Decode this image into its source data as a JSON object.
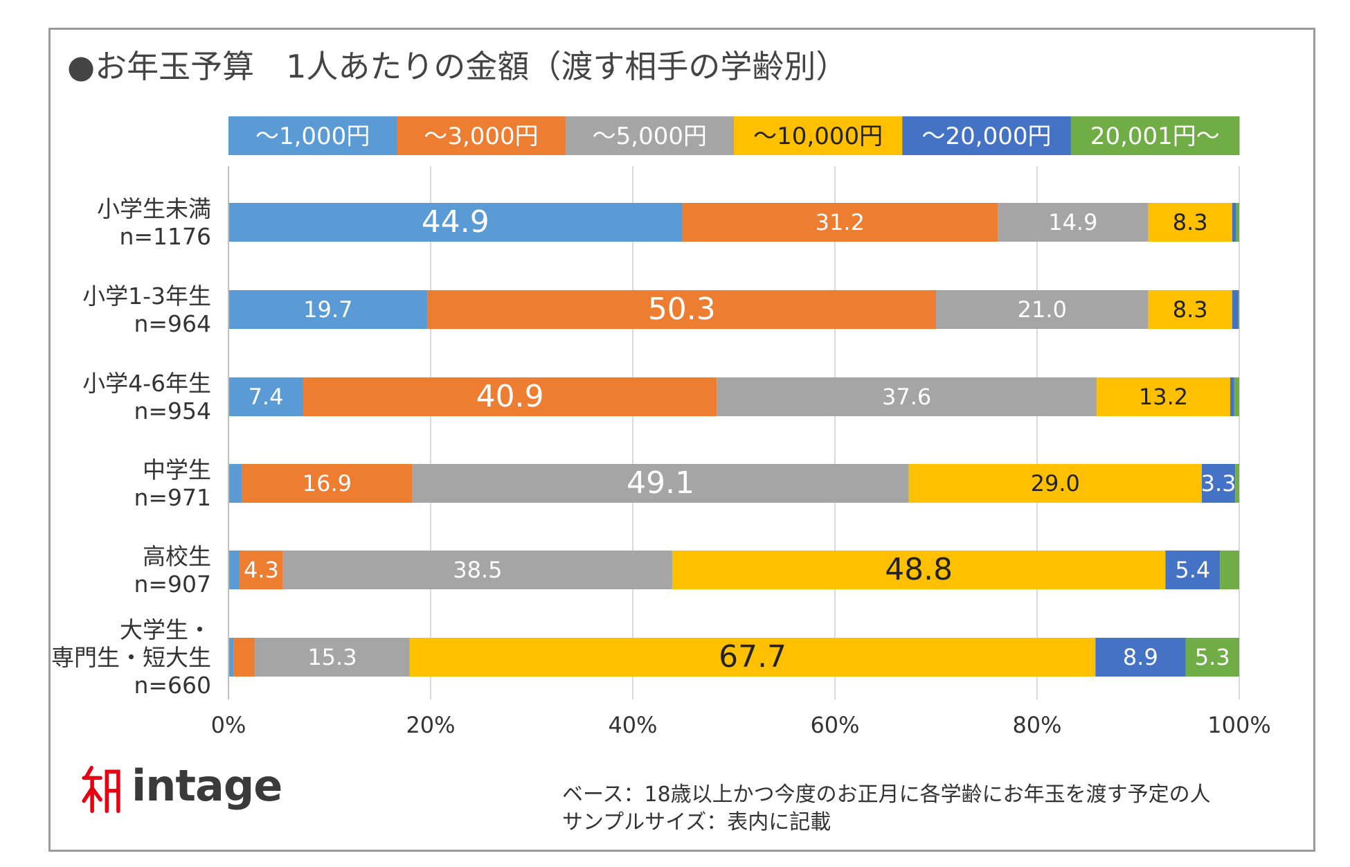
{
  "title": "●お年玉予算　1人あたりの金額（渡す相手の学齢別）",
  "footnote": {
    "base": "ベース：18歳以上かつ今度のお正月に各学齢にお年玉を渡す予定の人",
    "sample": "サンプルサイズ：表内に記載"
  },
  "logo": {
    "text": "intage",
    "color": "#e60012"
  },
  "chart_data": {
    "type": "bar",
    "orientation": "horizontal",
    "stacked": "percent",
    "categories": [
      [
        "小学生未満",
        "n=1176"
      ],
      [
        "小学1-3年生",
        "n=964"
      ],
      [
        "小学4-6年生",
        "n=954"
      ],
      [
        "中学生",
        "n=971"
      ],
      [
        "高校生",
        "n=907"
      ],
      [
        "大学生・",
        "専門生・短大生",
        "n=660"
      ]
    ],
    "series": [
      {
        "name": "～1,000円",
        "color": "#5b9bd5",
        "values": [
          44.9,
          19.7,
          7.4,
          1.3,
          1.1,
          0.5
        ]
      },
      {
        "name": "～3,000円",
        "color": "#ed7d31",
        "values": [
          31.2,
          50.3,
          40.9,
          16.9,
          4.3,
          2.1
        ]
      },
      {
        "name": "～5,000円",
        "color": "#a5a5a5",
        "values": [
          14.9,
          21.0,
          37.6,
          49.1,
          38.5,
          15.3
        ]
      },
      {
        "name": "～10,000円",
        "color": "#ffc000",
        "values": [
          8.3,
          8.3,
          13.2,
          29.0,
          48.8,
          67.7
        ]
      },
      {
        "name": "～20,000円",
        "color": "#4472c4",
        "values": [
          0.4,
          0.6,
          0.4,
          3.3,
          5.4,
          8.9
        ]
      },
      {
        "name": "20,001円～",
        "color": "#70ad47",
        "values": [
          0.3,
          0.1,
          0.5,
          0.4,
          1.9,
          5.3
        ]
      }
    ],
    "data_labels": [
      [
        {
          "s": 0,
          "text": "44.9",
          "big": true
        },
        {
          "s": 1,
          "text": "31.2"
        },
        {
          "s": 2,
          "text": "14.9"
        },
        {
          "s": 3,
          "text": "8.3"
        }
      ],
      [
        {
          "s": 0,
          "text": "19.7"
        },
        {
          "s": 1,
          "text": "50.3",
          "big": true
        },
        {
          "s": 2,
          "text": "21.0"
        },
        {
          "s": 3,
          "text": "8.3"
        }
      ],
      [
        {
          "s": 0,
          "text": "7.4"
        },
        {
          "s": 1,
          "text": "40.9",
          "big": true
        },
        {
          "s": 2,
          "text": "37.6"
        },
        {
          "s": 3,
          "text": "13.2"
        }
      ],
      [
        {
          "s": 1,
          "text": "16.9"
        },
        {
          "s": 2,
          "text": "49.1",
          "big": true
        },
        {
          "s": 3,
          "text": "29.0"
        },
        {
          "s": 4,
          "text": "3.3"
        }
      ],
      [
        {
          "s": 1,
          "text": "4.3"
        },
        {
          "s": 2,
          "text": "38.5"
        },
        {
          "s": 3,
          "text": "48.8",
          "big": true
        },
        {
          "s": 4,
          "text": "5.4"
        }
      ],
      [
        {
          "s": 2,
          "text": "15.3"
        },
        {
          "s": 3,
          "text": "67.7",
          "big": true
        },
        {
          "s": 4,
          "text": "8.9"
        },
        {
          "s": 5,
          "text": "5.3"
        }
      ]
    ],
    "x_ticks": [
      "0%",
      "20%",
      "40%",
      "60%",
      "80%",
      "100%"
    ],
    "xlim": [
      0,
      100
    ],
    "grid": true,
    "legend": "top"
  }
}
